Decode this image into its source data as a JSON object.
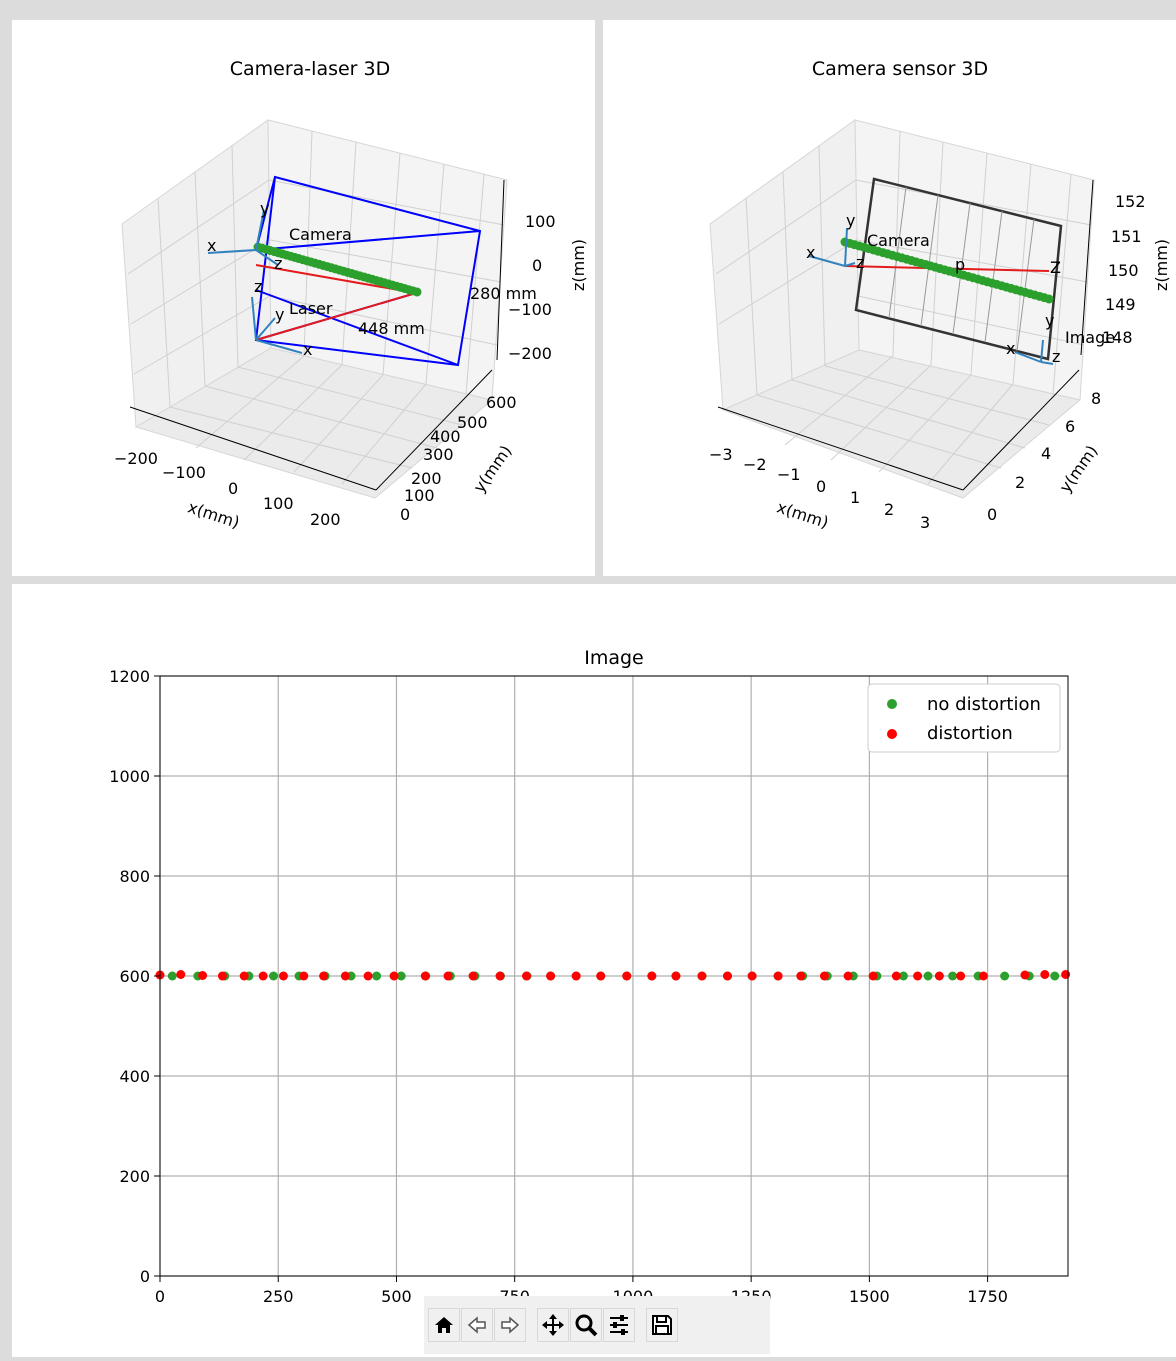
{
  "chart_data": [
    {
      "type": "scatter3d",
      "title": "Camera-laser 3D",
      "xlabel": "x(mm)",
      "ylabel": "y(mm)",
      "zlabel": "z(mm)",
      "xticks": [
        "−200",
        "−100",
        "0",
        "100",
        "200"
      ],
      "yticks": [
        "0",
        "100",
        "200",
        "300",
        "400",
        "500",
        "600"
      ],
      "zticks": [
        "100",
        "0",
        "−100",
        "−200"
      ],
      "annotations": {
        "camera": "Camera",
        "laser": "Laser",
        "dist1": "280 mm",
        "dist2": "448 mm"
      },
      "axis_letters": [
        "x",
        "y",
        "z",
        "z",
        "y",
        "x"
      ],
      "colors": {
        "frame": "#0000ff",
        "points": "#2ca02c",
        "ray": "#e41a1c",
        "axes": "#3182bd"
      }
    },
    {
      "type": "scatter3d",
      "title": "Camera sensor 3D",
      "xlabel": "x(mm)",
      "ylabel": "y(mm)",
      "zlabel": "z(mm)",
      "xticks": [
        "−3",
        "−2",
        "−1",
        "0",
        "1",
        "2",
        "3"
      ],
      "yticks": [
        "0",
        "2",
        "4",
        "6",
        "8"
      ],
      "zticks": [
        "152",
        "151",
        "150",
        "149",
        "148"
      ],
      "annotations": {
        "camera": "Camera",
        "image": "Image",
        "p": "p",
        "Z": "Z"
      },
      "axis_letters": [
        "y",
        "x",
        "z",
        "y",
        "x",
        "z"
      ],
      "colors": {
        "frame": "#333333",
        "points": "#2ca02c",
        "ray": "#e41a1c",
        "axes": "#3182bd"
      }
    },
    {
      "type": "scatter",
      "title": "Image",
      "xlim": [
        0,
        1920
      ],
      "ylim": [
        0,
        1200
      ],
      "xticks": [
        0,
        250,
        500,
        750,
        1000,
        1250,
        1500,
        1750
      ],
      "yticks": [
        0,
        200,
        400,
        600,
        800,
        1000,
        1200
      ],
      "grid": true,
      "legend": "top-right",
      "series": [
        {
          "name": "no distortion",
          "color": "#2ca02c",
          "x": [
            26,
            80,
            137,
            188,
            240,
            294,
            349,
            404,
            458,
            510,
            562,
            614,
            666,
            720,
            776,
            826,
            880,
            932,
            987,
            1040,
            1091,
            1146,
            1200,
            1252,
            1307,
            1359,
            1411,
            1466,
            1516,
            1572,
            1624,
            1676,
            1730,
            1786,
            1838,
            1892
          ],
          "y": [
            600,
            600,
            600,
            600,
            600,
            600,
            600,
            600,
            600,
            600,
            600,
            600,
            600,
            600,
            600,
            600,
            600,
            600,
            600,
            600,
            600,
            600,
            600,
            600,
            600,
            600,
            600,
            600,
            600,
            600,
            600,
            600,
            600,
            600,
            600,
            600
          ]
        },
        {
          "name": "distortion",
          "color": "#ff0000",
          "x": [
            0,
            44,
            90,
            132,
            178,
            218,
            261,
            304,
            346,
            392,
            440,
            495,
            561,
            609,
            662,
            719,
            775,
            826,
            880,
            932,
            987,
            1040,
            1091,
            1146,
            1200,
            1252,
            1307,
            1355,
            1405,
            1455,
            1508,
            1557,
            1602,
            1648,
            1693,
            1741,
            1829,
            1871,
            1915
          ],
          "y": [
            602,
            603,
            601,
            600,
            600,
            600,
            600,
            600,
            600,
            600,
            600,
            600,
            600,
            600,
            600,
            600,
            600,
            600,
            600,
            600,
            600,
            600,
            600,
            600,
            600,
            600,
            600,
            600,
            600,
            600,
            600,
            600,
            600,
            600,
            600,
            600,
            602,
            603,
            603
          ]
        }
      ]
    }
  ],
  "toolbar": {
    "buttons": [
      {
        "name": "home-button",
        "icon": "home-icon"
      },
      {
        "name": "back-button",
        "icon": "arrow-left-icon"
      },
      {
        "name": "forward-button",
        "icon": "arrow-right-icon"
      },
      {
        "name": "pan-button",
        "icon": "move-icon"
      },
      {
        "name": "zoom-button",
        "icon": "magnifier-icon"
      },
      {
        "name": "configure-button",
        "icon": "sliders-icon"
      },
      {
        "name": "save-button",
        "icon": "floppy-disk-icon"
      }
    ]
  }
}
